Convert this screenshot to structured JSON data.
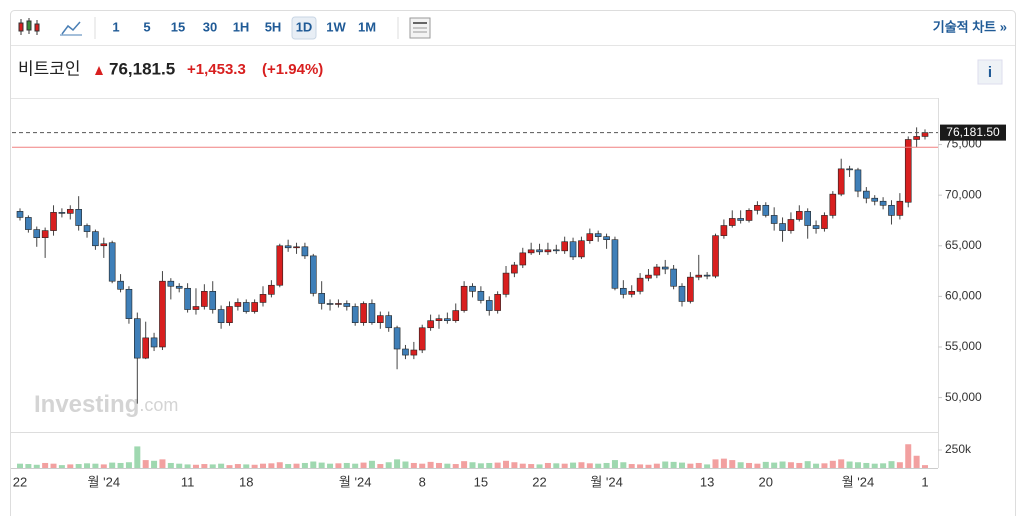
{
  "toolbar": {
    "intervals": [
      "1",
      "5",
      "15",
      "30",
      "1H",
      "5H",
      "1D",
      "1W",
      "1M"
    ],
    "link": "기술적 차트 »"
  },
  "header": {
    "name": "비트코인",
    "price": "76,181.5",
    "change": "+1,453.3",
    "change_pct": "(+1.94%)",
    "info": "i"
  },
  "watermark": {
    "brand": "Investing",
    "suffix": ".com"
  },
  "chart_data": {
    "type": "candlestick",
    "categories": [
      "22",
      null,
      null,
      null,
      null,
      null,
      null,
      null,
      null,
      null,
      "월 '24",
      null,
      null,
      null,
      null,
      null,
      null,
      null,
      null,
      null,
      "11",
      null,
      null,
      null,
      null,
      null,
      null,
      "18",
      null,
      null,
      null,
      null,
      null,
      null,
      null,
      null,
      null,
      null,
      null,
      null,
      "월 '24",
      null,
      null,
      null,
      null,
      null,
      null,
      null,
      "8",
      null,
      null,
      null,
      null,
      null,
      null,
      "15",
      null,
      null,
      null,
      null,
      null,
      null,
      "22",
      null,
      null,
      null,
      null,
      null,
      null,
      null,
      "월 '24",
      null,
      null,
      null,
      null,
      null,
      null,
      null,
      null,
      null,
      null,
      null,
      "13",
      null,
      null,
      null,
      null,
      null,
      null,
      "20",
      null,
      null,
      null,
      null,
      null,
      null,
      null,
      null,
      null,
      null,
      "월 '24",
      null,
      null,
      null,
      null,
      null,
      null,
      null,
      "1"
    ],
    "open": [
      68400,
      67800,
      66600,
      65800,
      66500,
      68300,
      68200,
      68600,
      67000,
      66400,
      65000,
      65300,
      61500,
      60700,
      57800,
      53900,
      55900,
      55000,
      61500,
      61000,
      60800,
      58700,
      59000,
      60500,
      58700,
      57400,
      59000,
      59400,
      58500,
      59400,
      60200,
      61100,
      65000,
      64800,
      64900,
      64000,
      60300,
      59300,
      59200,
      59300,
      59000,
      57400,
      59300,
      57400,
      58100,
      56900,
      54800,
      54200,
      54700,
      56900,
      57600,
      57800,
      57600,
      58600,
      61000,
      60500,
      59600,
      58600,
      60200,
      62300,
      63100,
      64300,
      64600,
      64400,
      64600,
      64500,
      65400,
      63900,
      65500,
      66200,
      65900,
      65600,
      60800,
      60200,
      60500,
      61800,
      62100,
      62900,
      62700,
      61000,
      59500,
      61900,
      62100,
      62000,
      66000,
      67000,
      67700,
      67500,
      68500,
      69000,
      68000,
      67200,
      66500,
      67600,
      68400,
      67000,
      66700,
      68000,
      70100,
      72600,
      72500,
      70400,
      69700,
      69400,
      69000,
      68000,
      69300,
      75500,
      75800
    ],
    "high": [
      68700,
      68000,
      66900,
      66800,
      69000,
      68700,
      69000,
      69900,
      67200,
      66600,
      65800,
      65500,
      62200,
      61000,
      58400,
      57500,
      56400,
      62500,
      61800,
      61300,
      61300,
      60800,
      61200,
      61500,
      59100,
      59500,
      59800,
      59700,
      59700,
      61000,
      61600,
      65200,
      65600,
      65300,
      65300,
      64200,
      61500,
      59700,
      59700,
      59600,
      59300,
      59500,
      59700,
      58500,
      58500,
      57100,
      55200,
      55500,
      57200,
      58200,
      58200,
      58400,
      59300,
      61500,
      61300,
      61000,
      60000,
      60500,
      63000,
      63400,
      64800,
      65300,
      65200,
      65300,
      65100,
      65900,
      65800,
      65900,
      66700,
      66500,
      66200,
      65900,
      61600,
      61100,
      62300,
      62700,
      63200,
      63600,
      63100,
      61300,
      62400,
      64100,
      62400,
      66200,
      67600,
      68500,
      68500,
      68700,
      69400,
      69300,
      68800,
      67800,
      68300,
      69000,
      68700,
      67500,
      68300,
      70400,
      73600,
      72900,
      72700,
      70800,
      70000,
      69800,
      69500,
      70200,
      75800,
      76700,
      76500
    ],
    "low": [
      67500,
      66300,
      64900,
      63800,
      66000,
      67800,
      67600,
      66500,
      65800,
      64600,
      63800,
      61300,
      60400,
      57300,
      49400,
      53800,
      54600,
      54700,
      59700,
      60400,
      58400,
      58200,
      58700,
      58300,
      56800,
      57100,
      58600,
      58300,
      58300,
      59000,
      59900,
      60900,
      64400,
      64200,
      63700,
      60000,
      58700,
      58600,
      58900,
      58600,
      57100,
      57100,
      57200,
      56800,
      56500,
      52800,
      53800,
      53800,
      54400,
      56600,
      56800,
      57300,
      57400,
      58400,
      59900,
      59300,
      58100,
      58300,
      59900,
      61900,
      62800,
      64100,
      64100,
      64100,
      64200,
      64200,
      63600,
      63700,
      65200,
      65400,
      64700,
      60600,
      59800,
      59900,
      60200,
      61500,
      61800,
      62200,
      60700,
      59000,
      59300,
      61600,
      61700,
      61800,
      65700,
      66800,
      67200,
      67300,
      68100,
      67800,
      66500,
      65400,
      66200,
      67400,
      65700,
      66200,
      66400,
      67700,
      69900,
      71800,
      69800,
      69200,
      69000,
      68600,
      67100,
      67600,
      68800,
      74700,
      75500
    ],
    "close": [
      67800,
      66600,
      65800,
      66500,
      68300,
      68200,
      68600,
      67000,
      66400,
      65000,
      65200,
      61500,
      60700,
      57800,
      53900,
      55900,
      55000,
      61500,
      61000,
      60800,
      58700,
      59000,
      60500,
      58700,
      57400,
      59000,
      59400,
      58500,
      59400,
      60200,
      61100,
      65000,
      64800,
      64900,
      64000,
      60300,
      59300,
      59200,
      59300,
      59000,
      57400,
      59300,
      57400,
      58100,
      56900,
      54800,
      54200,
      54700,
      56900,
      57600,
      57800,
      57600,
      58600,
      61000,
      60500,
      59600,
      58600,
      60200,
      62300,
      63100,
      64300,
      64600,
      64400,
      64600,
      64500,
      65400,
      63900,
      65500,
      66200,
      65900,
      65600,
      60800,
      60200,
      60500,
      61800,
      62100,
      62900,
      62700,
      61000,
      59500,
      61900,
      62100,
      62000,
      66000,
      67000,
      67700,
      67500,
      68500,
      69000,
      68000,
      67200,
      66500,
      67600,
      68400,
      67000,
      66700,
      68000,
      70100,
      72600,
      72500,
      70400,
      69700,
      69400,
      69000,
      68000,
      69400,
      75500,
      75800,
      76181.5
    ],
    "volume": [
      60000,
      55000,
      45000,
      70000,
      60000,
      40000,
      50000,
      55000,
      65000,
      60000,
      50000,
      75000,
      70000,
      80000,
      300000,
      110000,
      100000,
      120000,
      70000,
      60000,
      50000,
      45000,
      55000,
      50000,
      60000,
      40000,
      55000,
      50000,
      45000,
      60000,
      65000,
      80000,
      55000,
      60000,
      70000,
      90000,
      75000,
      60000,
      65000,
      70000,
      60000,
      75000,
      100000,
      55000,
      80000,
      120000,
      90000,
      70000,
      60000,
      85000,
      70000,
      60000,
      55000,
      95000,
      80000,
      65000,
      70000,
      75000,
      100000,
      80000,
      60000,
      55000,
      50000,
      70000,
      65000,
      60000,
      75000,
      80000,
      65000,
      60000,
      70000,
      110000,
      80000,
      55000,
      50000,
      45000,
      60000,
      90000,
      85000,
      75000,
      60000,
      70000,
      50000,
      120000,
      130000,
      110000,
      80000,
      70000,
      60000,
      85000,
      75000,
      90000,
      80000,
      70000,
      95000,
      60000,
      65000,
      100000,
      120000,
      90000,
      80000,
      70000,
      60000,
      65000,
      95000,
      80000,
      330000,
      170000,
      40000
    ],
    "last_label": "76,181.50",
    "reference_line": 74728.2,
    "ylim": [
      46600,
      79600
    ],
    "yticks": [
      {
        "value": 50000,
        "label": "50,000"
      },
      {
        "value": 55000,
        "label": "55,000"
      },
      {
        "value": 60000,
        "label": "60,000"
      },
      {
        "value": 65000,
        "label": "65,000"
      },
      {
        "value": 70000,
        "label": "70,000"
      },
      {
        "value": 75000,
        "label": "75,000"
      }
    ],
    "volume_ylim": [
      0,
      500000
    ],
    "volume_ticks": [
      {
        "value": 250000,
        "label": "250k"
      }
    ],
    "up_color": "#d81f1f",
    "down_color": "#3f7fb8",
    "volume_up_color": "#f2a0a0",
    "volume_down_color": "#9fd8b0",
    "grid": false
  }
}
